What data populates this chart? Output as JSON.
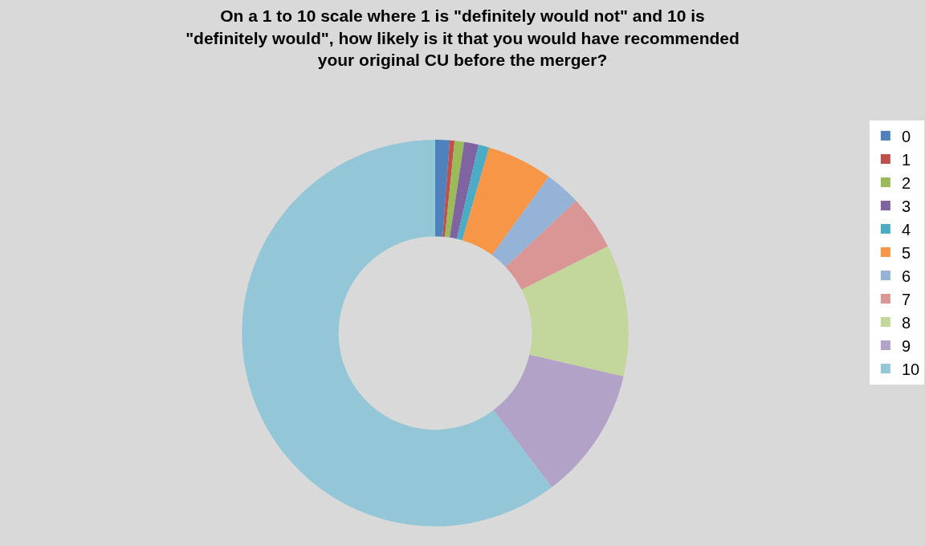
{
  "chart_data": {
    "type": "donut",
    "title": "On a 1 to 10 scale where 1 is \"definitely would not\" and 10 is \"definitely would\", how likely is it that you would have recommended your original CU before the merger?",
    "categories": [
      "0",
      "1",
      "2",
      "3",
      "4",
      "5",
      "6",
      "7",
      "8",
      "9",
      "10"
    ],
    "values": [
      1.2,
      0.4,
      0.8,
      1.2,
      0.9,
      5.5,
      3.0,
      4.6,
      11.0,
      11.1,
      60.3
    ],
    "colors": [
      "#4f81bd",
      "#c0504d",
      "#9bbb59",
      "#8064a2",
      "#4bacc6",
      "#f79646",
      "#95b3d7",
      "#d99694",
      "#c3d69b",
      "#b2a2c7",
      "#93c6d6"
    ],
    "legend": "right"
  }
}
